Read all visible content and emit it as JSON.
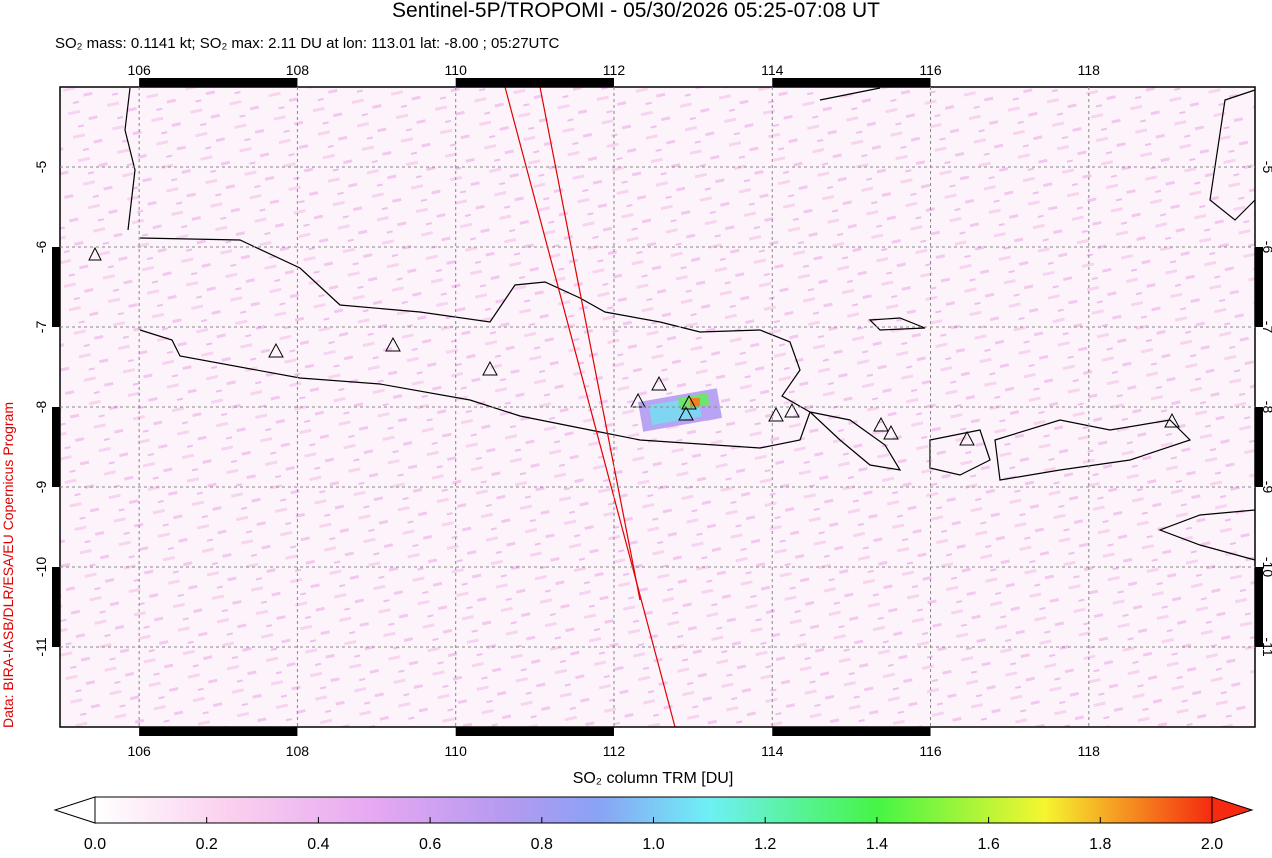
{
  "title": "Sentinel-5P/TROPOMI - 05/30/2026 05:25-07:08 UT",
  "subtitle": "SO₂ mass: 0.1141 kt; SO₂ max: 2.11 DU at lon: 113.01 lat: -8.00 ; 05:27UTC",
  "credit": "Data: BIRA-IASB/DLR/ESA/EU Copernicus Program",
  "map": {
    "lon_range": [
      105,
      120.1
    ],
    "lat_range": [
      -4,
      -12
    ],
    "lon_ticks": [
      106,
      108,
      110,
      112,
      114,
      116,
      118
    ],
    "lat_ticks": [
      -5,
      -6,
      -7,
      -8,
      -9,
      -10,
      -11
    ]
  },
  "colorbar": {
    "label": "SO₂ column TRM [DU]",
    "range": [
      0,
      2
    ],
    "ticks": [
      {
        "value": 0,
        "label": "0.0"
      },
      {
        "value": 0.2,
        "label": "0.2"
      },
      {
        "value": 0.4,
        "label": "0.4"
      },
      {
        "value": 0.6,
        "label": "0.6"
      },
      {
        "value": 0.8,
        "label": "0.8"
      },
      {
        "value": 1,
        "label": "1.0"
      },
      {
        "value": 1.2,
        "label": "1.2"
      },
      {
        "value": 1.4,
        "label": "1.4"
      },
      {
        "value": 1.6,
        "label": "1.6"
      },
      {
        "value": 1.8,
        "label": "1.8"
      },
      {
        "value": 2,
        "label": "2.0"
      }
    ]
  }
}
